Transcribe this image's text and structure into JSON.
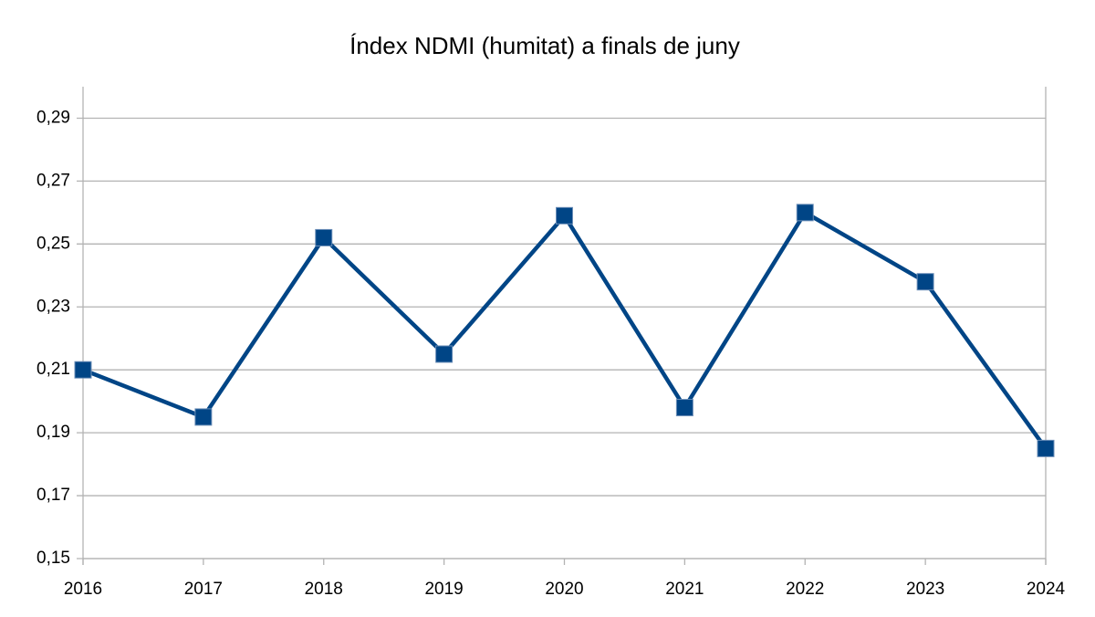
{
  "chart_data": {
    "type": "line",
    "title": "Índex NDMI (humitat) a finals de juny",
    "categories": [
      "2016",
      "2017",
      "2018",
      "2019",
      "2020",
      "2021",
      "2022",
      "2023",
      "2024"
    ],
    "values": [
      0.21,
      0.195,
      0.252,
      0.215,
      0.259,
      0.198,
      0.26,
      0.238,
      0.185
    ],
    "color": "#004586",
    "ylim": [
      0.15,
      0.3
    ],
    "yticks": [
      {
        "value": 0.15,
        "label": "0,15"
      },
      {
        "value": 0.17,
        "label": "0,17"
      },
      {
        "value": 0.19,
        "label": "0,19"
      },
      {
        "value": 0.21,
        "label": "0,21"
      },
      {
        "value": 0.23,
        "label": "0,23"
      },
      {
        "value": 0.25,
        "label": "0,25"
      },
      {
        "value": 0.27,
        "label": "0,27"
      },
      {
        "value": 0.29,
        "label": "0,29"
      }
    ],
    "grid": true
  }
}
